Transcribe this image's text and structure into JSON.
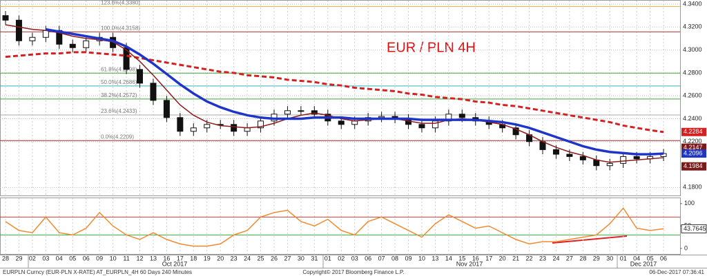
{
  "chart_data": {
    "type": "candlestick",
    "title": "EUR / PLN 4H",
    "categories": [
      "28",
      "29",
      "02",
      "03",
      "04",
      "05",
      "06",
      "09",
      "10",
      "11",
      "12",
      "13",
      "16",
      "17",
      "18",
      "19",
      "20",
      "23",
      "24",
      "25",
      "26",
      "27",
      "30",
      "31",
      "01",
      "02",
      "03",
      "06",
      "07",
      "08",
      "09",
      "10",
      "13",
      "14",
      "15",
      "16",
      "17",
      "20",
      "21",
      "22",
      "23",
      "24",
      "27",
      "28",
      "29",
      "30",
      "01",
      "04",
      "05",
      "06"
    ],
    "months": [
      "Oct 2017",
      "Nov 2017",
      "Dec 2017"
    ],
    "open": [
      4.33,
      4.326,
      4.308,
      4.311,
      4.317,
      4.305,
      4.302,
      4.308,
      4.311,
      4.302,
      4.283,
      4.271,
      4.256,
      4.241,
      4.229,
      4.232,
      4.235,
      4.235,
      4.229,
      4.232,
      4.238,
      4.244,
      4.247,
      4.247,
      4.244,
      4.238,
      4.235,
      4.238,
      4.241,
      4.242,
      4.24,
      4.235,
      4.232,
      4.238,
      4.244,
      4.241,
      4.238,
      4.235,
      4.232,
      4.226,
      4.22,
      4.213,
      4.209,
      4.207,
      4.204,
      4.199,
      4.201,
      4.207,
      4.205,
      4.207
    ],
    "high": [
      4.334,
      4.33,
      4.315,
      4.321,
      4.321,
      4.309,
      4.312,
      4.315,
      4.315,
      4.306,
      4.287,
      4.275,
      4.26,
      4.245,
      4.236,
      4.239,
      4.239,
      4.239,
      4.236,
      4.242,
      4.248,
      4.251,
      4.251,
      4.251,
      4.248,
      4.242,
      4.242,
      4.245,
      4.246,
      4.246,
      4.244,
      4.239,
      4.242,
      4.248,
      4.248,
      4.245,
      4.242,
      4.239,
      4.236,
      4.23,
      4.224,
      4.217,
      4.213,
      4.211,
      4.208,
      4.205,
      4.211,
      4.211,
      4.211,
      4.2136
    ],
    "low": [
      4.322,
      4.304,
      4.304,
      4.307,
      4.301,
      4.298,
      4.298,
      4.304,
      4.298,
      4.279,
      4.267,
      4.252,
      4.237,
      4.225,
      4.225,
      4.228,
      4.231,
      4.225,
      4.225,
      4.228,
      4.234,
      4.24,
      4.243,
      4.24,
      4.234,
      4.231,
      4.231,
      4.234,
      4.237,
      4.236,
      4.231,
      4.228,
      4.228,
      4.234,
      4.237,
      4.234,
      4.231,
      4.228,
      4.222,
      4.216,
      4.209,
      4.205,
      4.203,
      4.2,
      4.195,
      4.195,
      4.197,
      4.201,
      4.201,
      4.203
    ],
    "close": [
      4.326,
      4.308,
      4.311,
      4.317,
      4.305,
      4.302,
      4.308,
      4.311,
      4.302,
      4.283,
      4.271,
      4.256,
      4.241,
      4.229,
      4.232,
      4.235,
      4.235,
      4.229,
      4.232,
      4.238,
      4.244,
      4.247,
      4.247,
      4.244,
      4.238,
      4.235,
      4.238,
      4.241,
      4.242,
      4.24,
      4.235,
      4.232,
      4.238,
      4.244,
      4.241,
      4.238,
      4.235,
      4.232,
      4.226,
      4.22,
      4.213,
      4.209,
      4.207,
      4.204,
      4.199,
      4.201,
      4.207,
      4.205,
      4.207,
      4.2096
    ],
    "series": [
      {
        "color": "#d42020",
        "dashed": true,
        "width": 3,
        "values": [
          4.294,
          4.295,
          4.296,
          4.297,
          4.297,
          4.298,
          4.298,
          4.297,
          4.296,
          4.295,
          4.293,
          4.291,
          4.289,
          4.287,
          4.285,
          4.283,
          4.281,
          4.28,
          4.278,
          4.277,
          4.276,
          4.274,
          4.273,
          4.272,
          4.27,
          4.269,
          4.267,
          4.266,
          4.265,
          4.264,
          4.262,
          4.261,
          4.259,
          4.258,
          4.257,
          4.255,
          4.254,
          4.252,
          4.251,
          4.249,
          4.247,
          4.245,
          4.243,
          4.241,
          4.239,
          4.237,
          4.234,
          4.232,
          4.23,
          4.2284
        ]
      },
      {
        "color": "#8b1a1a",
        "dashed": false,
        "width": 1.5,
        "values": [
          4.322,
          4.32,
          4.318,
          4.317,
          4.315,
          4.312,
          4.31,
          4.309,
          4.307,
          4.3,
          4.29,
          4.278,
          4.265,
          4.252,
          4.243,
          4.237,
          4.234,
          4.233,
          4.232,
          4.233,
          4.236,
          4.24,
          4.243,
          4.245,
          4.243,
          4.24,
          4.238,
          4.239,
          4.24,
          4.24,
          4.238,
          4.236,
          4.236,
          4.239,
          4.24,
          4.239,
          4.237,
          4.235,
          4.231,
          4.226,
          4.22,
          4.215,
          4.211,
          4.208,
          4.204,
          4.202,
          4.203,
          4.204,
          4.205,
          4.206
        ]
      },
      {
        "color": "#1f35c8",
        "dashed": false,
        "width": 3.5,
        "values": [
          null,
          null,
          null,
          4.318,
          4.316,
          4.314,
          4.312,
          4.31,
          4.308,
          4.303,
          4.296,
          4.288,
          4.279,
          4.27,
          4.262,
          4.255,
          4.25,
          4.246,
          4.243,
          4.241,
          4.24,
          4.24,
          4.24,
          4.241,
          4.241,
          4.241,
          4.24,
          4.24,
          4.24,
          4.24,
          4.24,
          4.239,
          4.239,
          4.239,
          4.239,
          4.239,
          4.238,
          4.237,
          4.235,
          4.232,
          4.228,
          4.224,
          4.22,
          4.216,
          4.213,
          4.211,
          4.21,
          4.209,
          4.209,
          4.2096
        ]
      }
    ],
    "fibonacci": [
      {
        "label": "123.6%(4.3380)",
        "value": 4.338,
        "color": "#e0b040"
      },
      {
        "label": "100.0%(4.3158)",
        "value": 4.3158,
        "color": "#a03030"
      },
      {
        "label": "61.8%(4.2798)",
        "value": 4.2798,
        "color": "#3aa83a"
      },
      {
        "label": "50.0%(4.2686)",
        "value": 4.2686,
        "color": "#30b0c0"
      },
      {
        "label": "38.2%(4.2572)",
        "value": 4.2572,
        "color": "#3aa83a"
      },
      {
        "label": "23.6%(4.2433)",
        "value": 4.2433,
        "color": "#aaaaaa"
      },
      {
        "label": "0.0%(4.2209)",
        "value": 4.2209,
        "color": "#a03030"
      }
    ],
    "price_labels": [
      {
        "value": 4.2284,
        "color": "#d42020"
      },
      {
        "value": 4.2147,
        "color": "#7a1a1a"
      },
      {
        "value": 4.2096,
        "color": "#1f35c8"
      },
      {
        "value": 4.1984,
        "color": "#7a1a1a"
      }
    ],
    "ylim": [
      4.173,
      4.343
    ],
    "yticks": [
      {
        "value": 4.18,
        "label": "4.1800"
      },
      {
        "value": 4.22,
        "label": "4.2200"
      },
      {
        "value": 4.24,
        "label": "4.2400"
      },
      {
        "value": 4.26,
        "label": "4.2600"
      },
      {
        "value": 4.28,
        "label": "4.2800"
      },
      {
        "value": 4.3,
        "label": "4.3000"
      },
      {
        "value": 4.32,
        "label": "4.3200"
      },
      {
        "value": 4.34,
        "label": "4.3400"
      }
    ],
    "grid": true,
    "rsi": {
      "color": "#f08a30",
      "values": [
        60,
        40,
        35,
        70,
        35,
        30,
        45,
        80,
        50,
        30,
        20,
        35,
        20,
        10,
        5,
        5,
        10,
        30,
        40,
        70,
        80,
        85,
        60,
        50,
        65,
        40,
        30,
        60,
        70,
        55,
        40,
        25,
        55,
        75,
        60,
        45,
        50,
        35,
        20,
        10,
        15,
        15,
        20,
        25,
        30,
        55,
        90,
        45,
        40,
        43.7645
      ],
      "ylim": [
        -14,
        112
      ],
      "yticks": [
        0,
        50,
        100
      ],
      "levels": [
        {
          "value": 70,
          "color": "#c04040"
        },
        {
          "value": 30,
          "color": "#3aa83a"
        }
      ],
      "last_label": 43.7645
    },
    "footer": {
      "left": "EURPLN Curncy (EUR-PLN X-RATE) AT_EURPLN_4H 60 Days 240 Minutes",
      "center": "Copyright© 2017 Bloomberg Finance L.P.",
      "right": "06-Dec-2017 07:36:41"
    }
  }
}
